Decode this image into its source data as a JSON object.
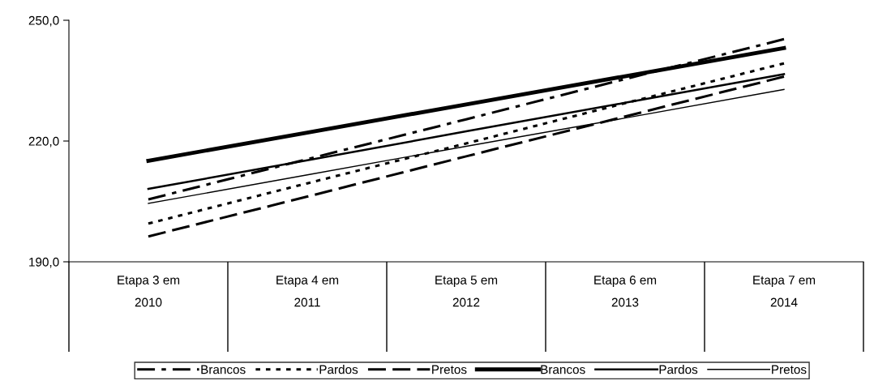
{
  "chart_data": {
    "type": "line",
    "categories": [
      "Etapa 3 em\n2010",
      "Etapa 4 em\n2011",
      "Etapa 5 em\n2012",
      "Etapa 6 em\n2013",
      "Etapa 7 em\n2014"
    ],
    "series": [
      {
        "name": "Brancos",
        "color": "#000000",
        "line_style": "dashdot",
        "values": [
          205.5,
          215.5,
          225.4,
          235.4,
          245.3
        ]
      },
      {
        "name": "Pardos",
        "color": "#000000",
        "line_style": "dotted",
        "values": [
          199.5,
          209.5,
          219.4,
          229.4,
          239.3
        ]
      },
      {
        "name": "Pretos",
        "color": "#000000",
        "line_style": "dashed",
        "values": [
          196.3,
          206.2,
          216.2,
          226.1,
          236.0
        ]
      },
      {
        "name": "Brancos",
        "color": "#000000",
        "line_style": "solid",
        "values": [
          215.1,
          222.1,
          229.1,
          236.1,
          243.1
        ]
      },
      {
        "name": "Pardos",
        "color": "#000000",
        "line_style": "solid",
        "values": [
          208.1,
          215.2,
          222.4,
          229.5,
          236.6
        ]
      },
      {
        "name": "Pretos",
        "color": "#000000",
        "line_style": "solid",
        "values": [
          204.5,
          211.6,
          218.7,
          225.7,
          232.8
        ]
      }
    ],
    "ylim": [
      190,
      250
    ],
    "yticks": [
      {
        "value": 190,
        "label": "190,0"
      },
      {
        "value": 220,
        "label": "220,0"
      },
      {
        "value": 250,
        "label": "250,0"
      }
    ],
    "grid": false,
    "legend": "bottom",
    "marker": "none"
  }
}
